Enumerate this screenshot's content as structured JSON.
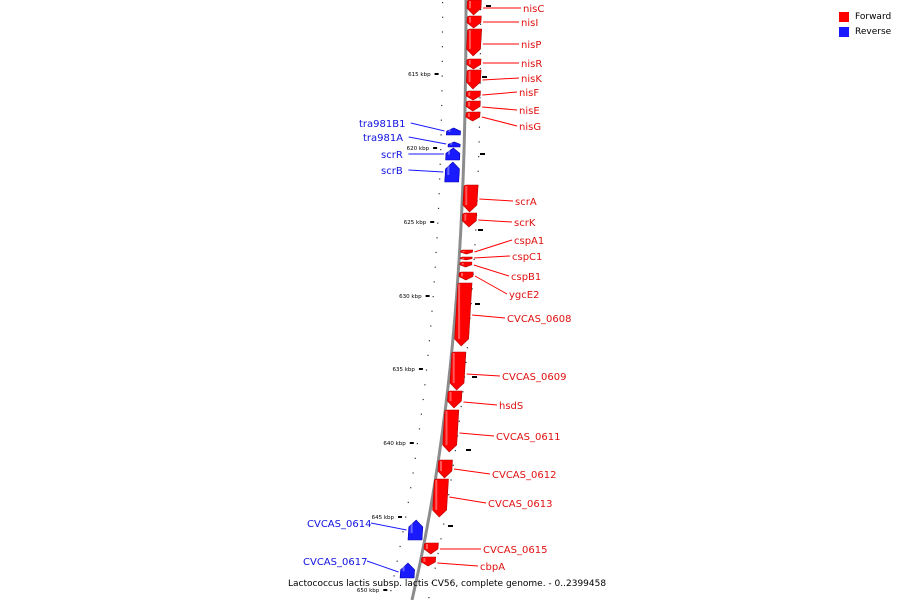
{
  "legend": {
    "forward_label": "Forward",
    "forward_color": "#ff0000",
    "reverse_label": "Reverse",
    "reverse_color": "#1a1aff"
  },
  "caption": "Lactococcus lactis subsp. lactis CV56, complete genome. - 0..2399458",
  "ticks": [
    {
      "kbp": 615,
      "label": "615 kbp"
    },
    {
      "kbp": 620,
      "label": "620 kbp"
    },
    {
      "kbp": 625,
      "label": "625 kbp"
    },
    {
      "kbp": 630,
      "label": "630 kbp"
    },
    {
      "kbp": 635,
      "label": "635 kbp"
    },
    {
      "kbp": 640,
      "label": "640 kbp"
    },
    {
      "kbp": 645,
      "label": "645 kbp"
    },
    {
      "kbp": 650,
      "label": "650 kbp"
    }
  ],
  "genes": [
    {
      "name": "nisC",
      "strand": "forward"
    },
    {
      "name": "nisI",
      "strand": "forward"
    },
    {
      "name": "nisP",
      "strand": "forward"
    },
    {
      "name": "nisR",
      "strand": "forward"
    },
    {
      "name": "nisK",
      "strand": "forward"
    },
    {
      "name": "nisF",
      "strand": "forward"
    },
    {
      "name": "nisE",
      "strand": "forward"
    },
    {
      "name": "nisG",
      "strand": "forward"
    },
    {
      "name": "tra981B1",
      "strand": "reverse"
    },
    {
      "name": "tra981A",
      "strand": "reverse"
    },
    {
      "name": "scrR",
      "strand": "reverse"
    },
    {
      "name": "scrB",
      "strand": "reverse"
    },
    {
      "name": "scrA",
      "strand": "forward"
    },
    {
      "name": "scrK",
      "strand": "forward"
    },
    {
      "name": "cspA1",
      "strand": "forward"
    },
    {
      "name": "cspC1",
      "strand": "forward"
    },
    {
      "name": "cspB1",
      "strand": "forward"
    },
    {
      "name": "ygcE2",
      "strand": "forward"
    },
    {
      "name": "CVCAS_0608",
      "strand": "forward"
    },
    {
      "name": "CVCAS_0609",
      "strand": "forward"
    },
    {
      "name": "hsdS",
      "strand": "forward"
    },
    {
      "name": "CVCAS_0611",
      "strand": "forward"
    },
    {
      "name": "CVCAS_0612",
      "strand": "forward"
    },
    {
      "name": "CVCAS_0613",
      "strand": "forward"
    },
    {
      "name": "CVCAS_0614",
      "strand": "reverse"
    },
    {
      "name": "CVCAS_0615",
      "strand": "forward"
    },
    {
      "name": "cbpA",
      "strand": "forward"
    },
    {
      "name": "CVCAS_0617",
      "strand": "reverse"
    }
  ]
}
